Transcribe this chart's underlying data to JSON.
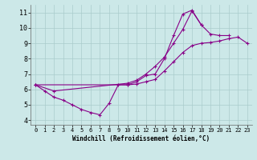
{
  "xlabel": "Windchill (Refroidissement éolien,°C)",
  "xlim": [
    -0.5,
    23.5
  ],
  "ylim": [
    3.7,
    11.5
  ],
  "yticks": [
    4,
    5,
    6,
    7,
    8,
    9,
    10,
    11
  ],
  "xticks": [
    0,
    1,
    2,
    3,
    4,
    5,
    6,
    7,
    8,
    9,
    10,
    11,
    12,
    13,
    14,
    15,
    16,
    17,
    18,
    19,
    20,
    21,
    22,
    23
  ],
  "bg_color": "#cce8e8",
  "line_color": "#880088",
  "grid_color": "#aacccc",
  "c1x": [
    0,
    1,
    2,
    3,
    4,
    5,
    6,
    7,
    8,
    9,
    10,
    11,
    12,
    13,
    14,
    15,
    16,
    17,
    18,
    19,
    20,
    21
  ],
  "c1y": [
    6.3,
    5.9,
    5.5,
    5.3,
    5.0,
    4.7,
    4.5,
    4.35,
    5.1,
    6.3,
    6.3,
    6.5,
    6.9,
    7.0,
    8.0,
    9.5,
    10.9,
    11.15,
    10.2,
    9.6,
    9.5,
    9.5
  ],
  "c2x": [
    0,
    10,
    11,
    12,
    13,
    14,
    15,
    16,
    17,
    18,
    19,
    20,
    21,
    22,
    23
  ],
  "c2y": [
    6.3,
    6.3,
    6.35,
    6.5,
    6.65,
    7.2,
    7.8,
    8.4,
    8.85,
    9.0,
    9.05,
    9.15,
    9.3,
    9.4,
    9.0
  ],
  "c3x": [
    0,
    2,
    10,
    11,
    12,
    13,
    14,
    15,
    16,
    17,
    18
  ],
  "c3y": [
    6.3,
    5.9,
    6.4,
    6.6,
    7.0,
    7.5,
    8.1,
    9.0,
    9.9,
    11.1,
    10.2
  ]
}
